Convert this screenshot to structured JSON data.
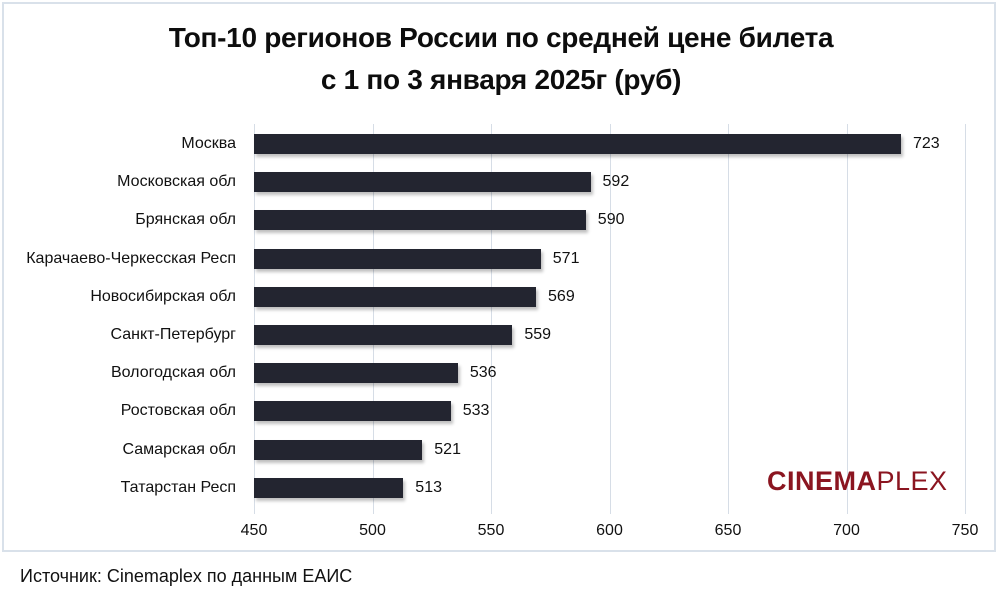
{
  "title": {
    "line1": "Топ-10 регионов России по средней цене билета",
    "line2": "с 1 по 3 января 2025г (руб)"
  },
  "logo": {
    "bold": "CINEMA",
    "light": "PLEX",
    "color": "#8b1520"
  },
  "source": "Источник: Cinemaplex по данным ЕАИС",
  "colors": {
    "bar": "#232530",
    "grid": "#d6dde6",
    "frame": "#d9e1ea"
  },
  "chart_data": {
    "type": "bar",
    "orientation": "horizontal",
    "title": "Топ-10 регионов России по средней цене билета с 1 по 3 января 2025г (руб)",
    "xlabel": "",
    "ylabel": "",
    "categories": [
      "Москва",
      "Московская обл",
      "Брянская обл",
      "Карачаево-Черкесская Респ",
      "Новосибирская обл",
      "Санкт-Петербург",
      "Вологодская обл",
      "Ростовская обл",
      "Самарская обл",
      "Татарстан Респ"
    ],
    "values": [
      723,
      592,
      590,
      571,
      569,
      559,
      536,
      533,
      521,
      513
    ],
    "xlim": [
      450,
      750
    ],
    "xticks": [
      "450",
      "500",
      "550",
      "600",
      "650",
      "700",
      "750"
    ],
    "grid": true,
    "data_labels": true,
    "legend": null
  }
}
